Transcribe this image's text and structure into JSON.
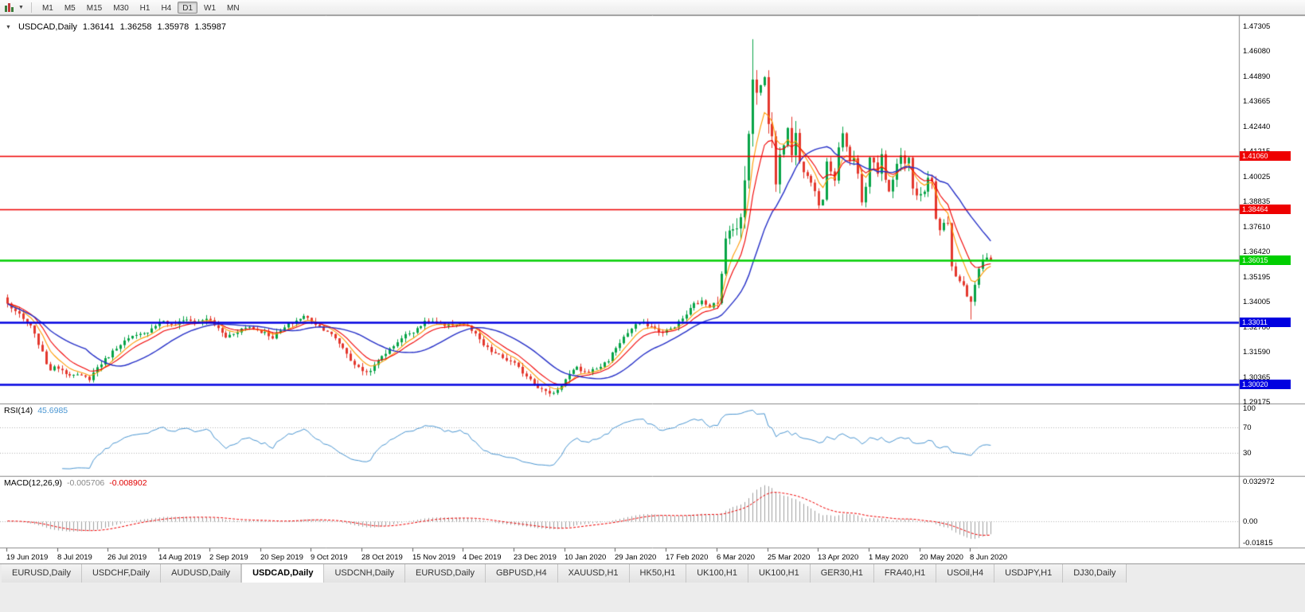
{
  "toolbar": {
    "timeframes": [
      "M1",
      "M5",
      "M15",
      "M30",
      "H1",
      "H4",
      "D1",
      "W1",
      "MN"
    ],
    "selected": "D1"
  },
  "chart_header": {
    "dropdown_caret": "▼",
    "symbol_period": "USDCAD,Daily",
    "open": "1.36141",
    "high": "1.36258",
    "low": "1.35978",
    "close": "1.35987"
  },
  "colors": {
    "chart_bg": "#ffffff",
    "border": "#8a8a8a",
    "candle_up": "#07a447",
    "candle_down": "#e4382d",
    "ma_fast": "#f20000",
    "ma_mid": "#ff9a00",
    "ma_slow": "#2630c8",
    "line_red": "#ee0000",
    "line_green": "#00ce00",
    "line_blue": "#0000e0",
    "rsi_line": "#4a96d2",
    "macd_hist": "#a0a0a0",
    "macd_signal": "#f20000",
    "axis_text": "#000000"
  },
  "chart_data": {
    "type": "candlestick",
    "title": "USDCAD Daily with MAs, RSI(14) and MACD(12,26,9)",
    "ylim": [
      1.29175,
      1.47305
    ],
    "price_axis_labels": [
      "1.47305",
      "1.46080",
      "1.44890",
      "1.43665",
      "1.42440",
      "1.41215",
      "1.40025",
      "1.38835",
      "1.37610",
      "1.36420",
      "1.35195",
      "1.34005",
      "1.32780",
      "1.31590",
      "1.30365",
      "1.29175"
    ],
    "dates": [
      "19 Jun 2019",
      "8 Jul 2019",
      "26 Jul 2019",
      "14 Aug 2019",
      "2 Sep 2019",
      "20 Sep 2019",
      "9 Oct 2019",
      "28 Oct 2019",
      "15 Nov 2019",
      "4 Dec 2019",
      "23 Dec 2019",
      "10 Jan 2020",
      "29 Jan 2020",
      "17 Feb 2020",
      "6 Mar 2020",
      "25 Mar 2020",
      "13 Apr 2020",
      "1 May 2020",
      "20 May 2020",
      "8 Jun 2020"
    ],
    "hlines": [
      {
        "price": 1.4106,
        "label": "1.41060",
        "color": "red",
        "width": 1.5
      },
      {
        "price": 1.38464,
        "label": "1.38464",
        "color": "red",
        "width": 1.5
      },
      {
        "price": 1.36015,
        "label": "1.36015",
        "color": "green",
        "width": 2.5
      },
      {
        "price": 1.33011,
        "label": "1.33011",
        "color": "blue",
        "width": 2.5
      },
      {
        "price": 1.3002,
        "label": "1.30020",
        "color": "blue",
        "width": 2.5
      }
    ],
    "overlays": [
      {
        "name": "ma-medium-orange",
        "type": "ema",
        "period": 6,
        "color_key": "ma_mid",
        "width": 1.1
      },
      {
        "name": "ma-fast-red",
        "type": "ema",
        "period": 10,
        "color_key": "ma_fast",
        "width": 1.1
      },
      {
        "name": "ma-slow-blue",
        "type": "sma",
        "period": 21,
        "color_key": "ma_slow",
        "width": 1.4
      }
    ],
    "rsi": {
      "title": "RSI(14)",
      "period": 14,
      "value": "45.6985",
      "levels": [
        100,
        70,
        30
      ],
      "axis_labels": [
        "100",
        "70",
        "30"
      ]
    },
    "macd": {
      "title": "MACD(12,26,9)",
      "fast": 12,
      "slow": 26,
      "signal": 9,
      "macd_value": "-0.005706",
      "signal_value": "-0.008902",
      "max": 0.032972,
      "min": -0.01815,
      "axis_labels": [
        "0.032972",
        "0.00",
        "-0.01815"
      ]
    },
    "candles": {
      "bar_count": 253,
      "default_amp": 0.0035,
      "wick_segments": [
        {
          "from": 182,
          "to": 202,
          "amp": 0.012
        },
        {
          "from": 203,
          "to": 241,
          "amp": 0.0065
        },
        {
          "from": 242,
          "to": 252,
          "amp": 0.0045
        }
      ],
      "extreme_overrides": [
        {
          "bar": 191,
          "high": 1.4668
        },
        {
          "bar": 140,
          "low": 1.2951
        },
        {
          "bar": 247,
          "low": 1.3315
        }
      ],
      "last_bar": {
        "open": 1.36141,
        "high": 1.36258,
        "low": 1.35978,
        "close": 1.35987
      },
      "waypoints": [
        [
          0,
          1.339
        ],
        [
          2,
          1.3355
        ],
        [
          4,
          1.3315
        ],
        [
          6,
          1.328
        ],
        [
          8,
          1.32
        ],
        [
          10,
          1.3105
        ],
        [
          11,
          1.3075
        ],
        [
          13,
          1.3085
        ],
        [
          15,
          1.306
        ],
        [
          17,
          1.3045
        ],
        [
          19,
          1.304
        ],
        [
          21,
          1.303
        ],
        [
          23,
          1.3085
        ],
        [
          26,
          1.314
        ],
        [
          29,
          1.32
        ],
        [
          32,
          1.323
        ],
        [
          35,
          1.3245
        ],
        [
          38,
          1.329
        ],
        [
          40,
          1.331
        ],
        [
          42,
          1.3285
        ],
        [
          44,
          1.33
        ],
        [
          46,
          1.332
        ],
        [
          48,
          1.33
        ],
        [
          50,
          1.3315
        ],
        [
          52,
          1.331
        ],
        [
          54,
          1.327
        ],
        [
          56,
          1.323
        ],
        [
          58,
          1.325
        ],
        [
          60,
          1.327
        ],
        [
          62,
          1.328
        ],
        [
          64,
          1.3265
        ],
        [
          66,
          1.325
        ],
        [
          68,
          1.323
        ],
        [
          70,
          1.326
        ],
        [
          72,
          1.329
        ],
        [
          74,
          1.331
        ],
        [
          76,
          1.333
        ],
        [
          78,
          1.331
        ],
        [
          80,
          1.328
        ],
        [
          82,
          1.326
        ],
        [
          84,
          1.322
        ],
        [
          86,
          1.318
        ],
        [
          88,
          1.312
        ],
        [
          90,
          1.308
        ],
        [
          92,
          1.306
        ],
        [
          94,
          1.309
        ],
        [
          96,
          1.314
        ],
        [
          98,
          1.317
        ],
        [
          100,
          1.321
        ],
        [
          102,
          1.324
        ],
        [
          104,
          1.326
        ],
        [
          106,
          1.329
        ],
        [
          108,
          1.331
        ],
        [
          110,
          1.33
        ],
        [
          112,
          1.328
        ],
        [
          114,
          1.329
        ],
        [
          116,
          1.33
        ],
        [
          118,
          1.328
        ],
        [
          120,
          1.324
        ],
        [
          122,
          1.319
        ],
        [
          124,
          1.316
        ],
        [
          126,
          1.314
        ],
        [
          128,
          1.312
        ],
        [
          130,
          1.31
        ],
        [
          132,
          1.306
        ],
        [
          134,
          1.303
        ],
        [
          136,
          1.299
        ],
        [
          138,
          1.2965
        ],
        [
          140,
          1.296
        ],
        [
          142,
          1.3
        ],
        [
          144,
          1.305
        ],
        [
          146,
          1.308
        ],
        [
          148,
          1.306
        ],
        [
          150,
          1.307
        ],
        [
          152,
          1.309
        ],
        [
          154,
          1.312
        ],
        [
          156,
          1.318
        ],
        [
          158,
          1.323
        ],
        [
          160,
          1.327
        ],
        [
          162,
          1.33
        ],
        [
          164,
          1.329
        ],
        [
          166,
          1.327
        ],
        [
          168,
          1.325
        ],
        [
          170,
          1.327
        ],
        [
          172,
          1.33
        ],
        [
          174,
          1.334
        ],
        [
          176,
          1.339
        ],
        [
          178,
          1.34
        ],
        [
          180,
          1.338
        ],
        [
          182,
          1.342
        ],
        [
          183,
          1.352
        ],
        [
          184,
          1.369
        ],
        [
          185,
          1.374
        ],
        [
          186,
          1.378
        ],
        [
          187,
          1.376
        ],
        [
          188,
          1.379
        ],
        [
          189,
          1.399
        ],
        [
          190,
          1.423
        ],
        [
          191,
          1.449
        ],
        [
          192,
          1.443
        ],
        [
          193,
          1.444
        ],
        [
          194,
          1.448
        ],
        [
          195,
          1.427
        ],
        [
          196,
          1.419
        ],
        [
          197,
          1.399
        ],
        [
          198,
          1.409
        ],
        [
          199,
          1.418
        ],
        [
          200,
          1.421
        ],
        [
          201,
          1.413
        ],
        [
          202,
          1.423
        ],
        [
          203,
          1.409
        ],
        [
          204,
          1.402
        ],
        [
          205,
          1.401
        ],
        [
          206,
          1.397
        ],
        [
          207,
          1.395
        ],
        [
          208,
          1.388
        ],
        [
          209,
          1.391
        ],
        [
          210,
          1.409
        ],
        [
          211,
          1.403
        ],
        [
          212,
          1.4
        ],
        [
          213,
          1.413
        ],
        [
          214,
          1.422
        ],
        [
          215,
          1.416
        ],
        [
          216,
          1.409
        ],
        [
          217,
          1.41
        ],
        [
          218,
          1.402
        ],
        [
          219,
          1.388
        ],
        [
          220,
          1.394
        ],
        [
          221,
          1.409
        ],
        [
          222,
          1.407
        ],
        [
          223,
          1.403
        ],
        [
          224,
          1.412
        ],
        [
          225,
          1.398
        ],
        [
          226,
          1.3925
        ],
        [
          227,
          1.399
        ],
        [
          228,
          1.408
        ],
        [
          229,
          1.41
        ],
        [
          230,
          1.406
        ],
        [
          231,
          1.411
        ],
        [
          232,
          1.396
        ],
        [
          233,
          1.392
        ],
        [
          234,
          1.393
        ],
        [
          235,
          1.394
        ],
        [
          236,
          1.3995
        ],
        [
          237,
          1.398
        ],
        [
          238,
          1.379
        ],
        [
          239,
          1.3745
        ],
        [
          240,
          1.377
        ],
        [
          241,
          1.378
        ],
        [
          242,
          1.358
        ],
        [
          243,
          1.352
        ],
        [
          244,
          1.35
        ],
        [
          245,
          1.348
        ],
        [
          246,
          1.342
        ],
        [
          247,
          1.339
        ],
        [
          248,
          1.348
        ],
        [
          249,
          1.356
        ],
        [
          250,
          1.3605
        ],
        [
          251,
          1.3614
        ],
        [
          252,
          1.35987
        ]
      ]
    }
  },
  "tabs": {
    "active_index": 3,
    "items": [
      "EURUSD,Daily",
      "USDCHF,Daily",
      "AUDUSD,Daily",
      "USDCAD,Daily",
      "USDCNH,Daily",
      "EURUSD,Daily",
      "GBPUSD,H4",
      "XAUUSD,H1",
      "HK50,H1",
      "UK100,H1",
      "UK100,H1",
      "GER30,H1",
      "FRA40,H1",
      "USOil,H4",
      "USDJPY,H1",
      "DJ30,Daily"
    ]
  }
}
